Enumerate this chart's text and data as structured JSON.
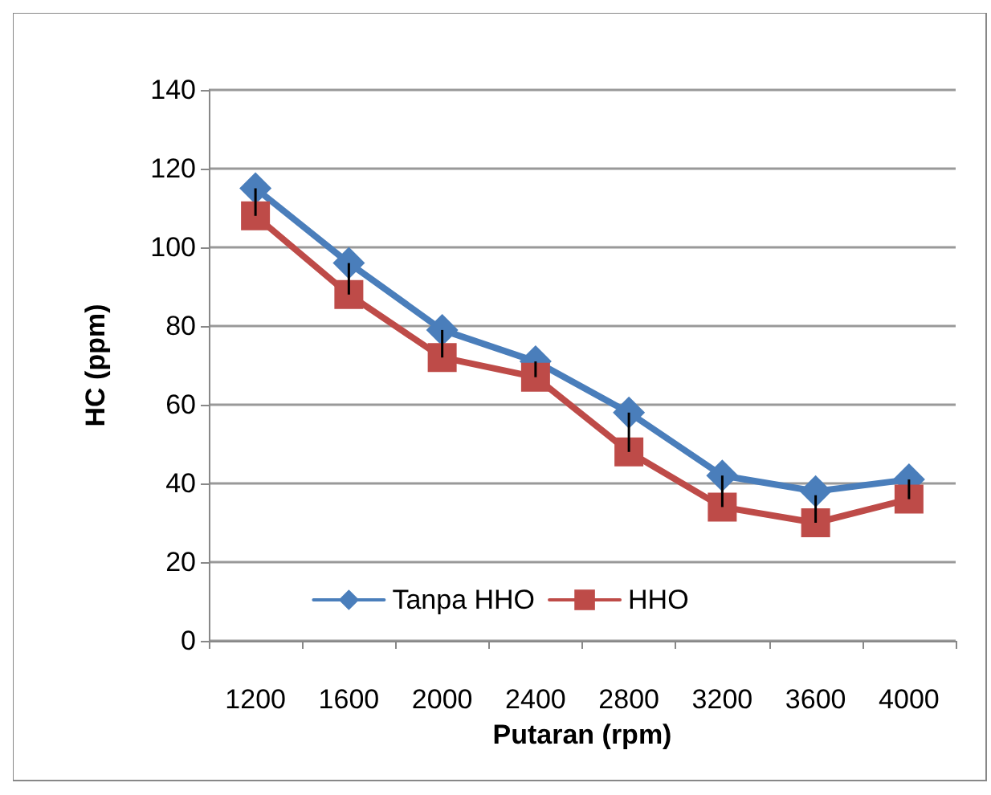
{
  "chart_data": {
    "type": "line",
    "xlabel": "Putaran (rpm)",
    "ylabel": "HC (ppm)",
    "categories": [
      "1200",
      "1600",
      "2000",
      "2400",
      "2800",
      "3200",
      "3600",
      "4000"
    ],
    "series": [
      {
        "name": "Tanpa HHO",
        "color": "#4a7ebb",
        "marker": "diamond",
        "values": [
          115,
          96,
          79,
          71,
          58,
          42,
          38,
          41
        ]
      },
      {
        "name": "HHO",
        "color": "#be4b48",
        "marker": "square",
        "values": [
          108,
          88,
          72,
          67,
          48,
          34,
          30,
          36
        ],
        "errors": [
          [
            108,
            115
          ],
          [
            88,
            96
          ],
          [
            72,
            79
          ],
          [
            67,
            71
          ],
          [
            48,
            58
          ],
          [
            34,
            42
          ],
          [
            30,
            37
          ],
          [
            36,
            41
          ]
        ]
      }
    ],
    "ylim": [
      0,
      140
    ],
    "yticks": [
      0,
      20,
      40,
      60,
      80,
      100,
      120,
      140
    ],
    "grid": "y",
    "legend": "bottom",
    "line_style": "solid"
  }
}
